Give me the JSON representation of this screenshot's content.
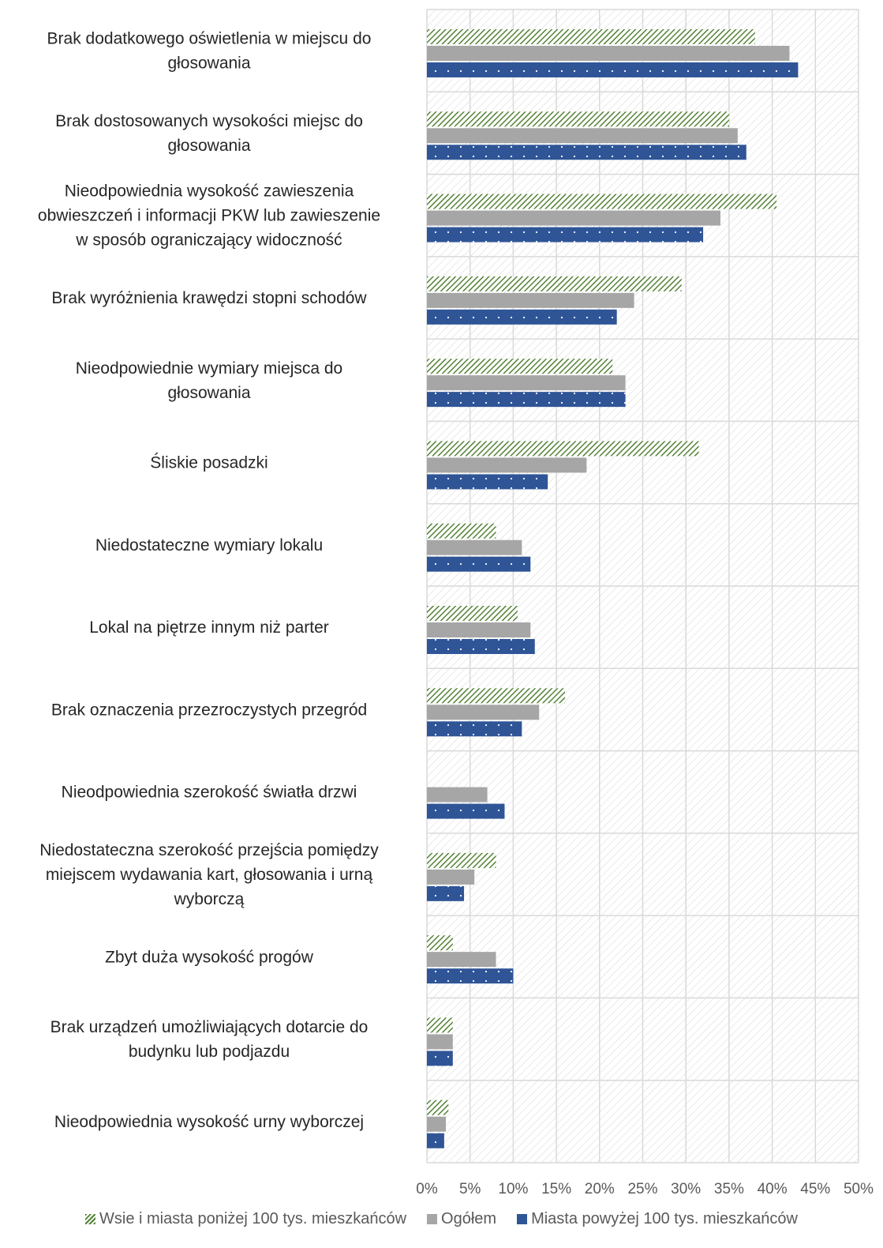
{
  "chart_data": {
    "type": "bar",
    "orientation": "horizontal",
    "categories": [
      "Brak dodatkowego oświetlenia w miejscu do głosowania",
      "Brak dostosowanych wysokości miejsc do głosowania",
      "Nieodpowiednia wysokość zawieszenia obwieszczeń i informacji PKW lub zawieszenie w sposób ograniczający widoczność",
      "Brak wyróżnienia krawędzi stopni schodów",
      "Nieodpowiednie wymiary miejsca do głosowania",
      "Śliskie posadzki",
      "Niedostateczne wymiary lokalu",
      "Lokal na piętrze innym niż parter",
      "Brak oznaczenia przezroczystych przegród",
      "Nieodpowiednia szerokość światła drzwi",
      "Niedostateczna szerokość przejścia pomiędzy miejscem wydawania kart, głosowania i urną wyborczą",
      "Zbyt duża wysokość progów",
      "Brak urządzeń umożliwiających dotarcie do budynku lub podjazdu",
      "Nieodpowiednia wysokość urny wyborczej"
    ],
    "category_lines": [
      [
        "Brak dodatkowego oświetlenia w miejscu do",
        "głosowania"
      ],
      [
        "Brak dostosowanych wysokości miejsc do",
        "głosowania"
      ],
      [
        "Nieodpowiednia wysokość zawieszenia",
        "obwieszczeń i informacji PKW lub zawieszenie",
        "w sposób ograniczający widoczność"
      ],
      [
        "Brak wyróżnienia krawędzi stopni schodów"
      ],
      [
        "Nieodpowiednie wymiary miejsca do",
        "głosowania"
      ],
      [
        "Śliskie posadzki"
      ],
      [
        "Niedostateczne wymiary lokalu"
      ],
      [
        "Lokal na piętrze innym niż parter"
      ],
      [
        "Brak oznaczenia przezroczystych przegród"
      ],
      [
        "Nieodpowiednia szerokość światła drzwi"
      ],
      [
        "Niedostateczna szerokość przejścia pomiędzy",
        "miejscem wydawania kart, głosowania i urną",
        "wyborczą"
      ],
      [
        "Zbyt duża wysokość progów"
      ],
      [
        "Brak urządzeń umożliwiających dotarcie do",
        "budynku lub podjazdu"
      ],
      [
        "Nieodpowiednia wysokość urny wyborczej"
      ]
    ],
    "series": [
      {
        "name": "Wsie i miasta poniżej 100 tys. mieszkańców",
        "color": "#548235",
        "pattern": "diagonal-hatch",
        "values": [
          38,
          35,
          40.5,
          29.5,
          21.5,
          31.5,
          8,
          10.5,
          16,
          0,
          8,
          3,
          3,
          2.5
        ]
      },
      {
        "name": "Ogółem",
        "color": "#a6a6a6",
        "pattern": "solid",
        "values": [
          42,
          36,
          34,
          24,
          23,
          18.5,
          11,
          12,
          13,
          7,
          5.5,
          8,
          3,
          2.2
        ]
      },
      {
        "name": "Miasta powyżej 100 tys. mieszkańców",
        "color": "#2f5597",
        "pattern": "dotted",
        "values": [
          43,
          37,
          32,
          22,
          23,
          14,
          12,
          12.5,
          11,
          9,
          4.3,
          10,
          3,
          2
        ]
      }
    ],
    "xlim": [
      0,
      50
    ],
    "xticks": [
      "0%",
      "5%",
      "10%",
      "15%",
      "20%",
      "25%",
      "30%",
      "35%",
      "40%",
      "45%",
      "50%"
    ],
    "xlabel": "",
    "ylabel": "",
    "title": "",
    "grid": true,
    "legend_position": "bottom"
  }
}
